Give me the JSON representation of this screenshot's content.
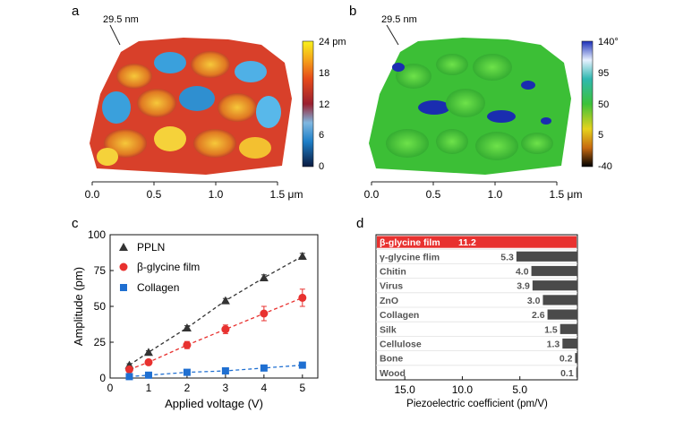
{
  "panel_letters": {
    "a": "a",
    "b": "b",
    "c": "c",
    "d": "d"
  },
  "panel_a": {
    "height_label": "29.5 nm",
    "colorbar_ticks": [
      "24 pm",
      "18",
      "12",
      "6",
      "0"
    ],
    "x_ticks": [
      "0.0",
      "0.5",
      "1.0",
      "1.5 μm"
    ]
  },
  "panel_b": {
    "height_label": "29.5 nm",
    "colorbar_ticks": [
      "140°",
      "95",
      "50",
      "5",
      "-40"
    ],
    "x_ticks": [
      "0.0",
      "0.5",
      "1.0",
      "1.5 μm"
    ]
  },
  "colors": {
    "pp_ln": "#333333",
    "beta": "#e8312f",
    "collagen": "#1f6fd1",
    "bar": "#4a4a4a",
    "bar_highlight": "#e8312f",
    "label_highlight": "#e8312f"
  },
  "chart_data": [
    {
      "type": "scatter",
      "xlabel": "Applied voltage (V)",
      "ylabel": "Amplitude (pm)",
      "xlim": [
        0,
        5.4
      ],
      "ylim": [
        0,
        100
      ],
      "x_ticks": [
        "0",
        "1",
        "2",
        "3",
        "4",
        "5"
      ],
      "y_ticks": [
        "0",
        "25",
        "50",
        "75",
        "100"
      ],
      "legend_position": "top-left",
      "series": [
        {
          "name": "PPLN",
          "marker": "triangle",
          "x": [
            0.5,
            1,
            2,
            3,
            4,
            5
          ],
          "values": [
            9,
            18,
            35,
            54,
            70,
            85
          ],
          "errors": [
            1,
            1,
            1.5,
            1.5,
            2,
            2
          ]
        },
        {
          "name": "β-glycine film",
          "marker": "circle",
          "x": [
            0.5,
            1,
            2,
            3,
            4,
            5
          ],
          "values": [
            6,
            11,
            23,
            34,
            45,
            56
          ],
          "errors": [
            1,
            1.5,
            2.5,
            3,
            5,
            6
          ]
        },
        {
          "name": "Collagen",
          "marker": "square",
          "x": [
            0.5,
            1,
            2,
            3,
            4,
            5
          ],
          "values": [
            1,
            2,
            4,
            5,
            7,
            9
          ],
          "errors": [
            0.5,
            0.5,
            0.5,
            0.5,
            0.8,
            1
          ]
        }
      ]
    },
    {
      "type": "bar",
      "orientation": "horizontal",
      "xlabel": "Piezoelectric coefficient (pm/V)",
      "x_ticks": [
        "15.0",
        "10.0",
        "5.0"
      ],
      "xlim": [
        17.5,
        0
      ],
      "categories": [
        "β-glycine film",
        "γ-glycine flim",
        "Chitin",
        "Virus",
        "ZnO",
        "Collagen",
        "Silk",
        "Cellulose",
        "Bone",
        "Wood"
      ],
      "values": [
        11.2,
        5.3,
        4.0,
        3.9,
        3.0,
        2.6,
        1.5,
        1.3,
        0.2,
        0.1
      ],
      "value_labels": [
        "11.2",
        "5.3",
        "4.0",
        "3.9",
        "3.0",
        "2.6",
        "1.5",
        "1.3",
        "0.2",
        "0.1"
      ]
    }
  ]
}
